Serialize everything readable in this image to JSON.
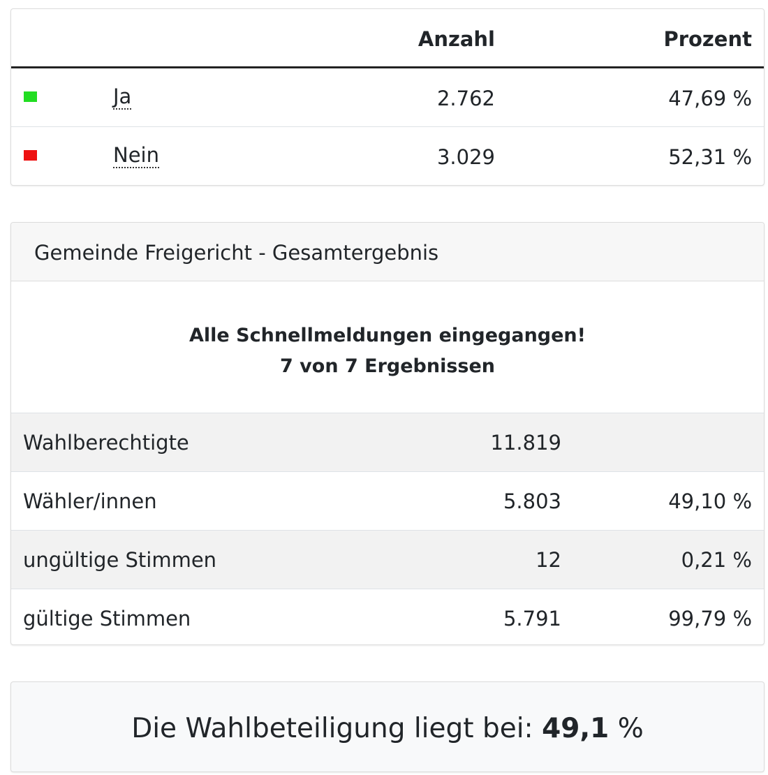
{
  "results": {
    "headers": {
      "anzahl": "Anzahl",
      "prozent": "Prozent"
    },
    "rows": [
      {
        "name": "Ja",
        "anzahl": "2.762",
        "prozent": "47,69 %",
        "color": "#22dd22"
      },
      {
        "name": "Nein",
        "anzahl": "3.029",
        "prozent": "52,31 %",
        "color": "#ee1111"
      }
    ]
  },
  "gemeinde": {
    "title": "Gemeinde Freigericht - Gesamtergebnis",
    "status_line1": "Alle Schnellmeldungen eingegangen!",
    "status_line2": "7 von 7 Ergebnissen",
    "stats": [
      {
        "label": "Wahlberechtigte",
        "value": "11.819",
        "pct": ""
      },
      {
        "label": "Wähler/innen",
        "value": "5.803",
        "pct": "49,10 %"
      },
      {
        "label": "ungültige Stimmen",
        "value": "12",
        "pct": "0,21 %"
      },
      {
        "label": "gültige Stimmen",
        "value": "5.791",
        "pct": "99,79 %"
      }
    ]
  },
  "turnout": {
    "prefix": "Die Wahlbeteiligung liegt bei:",
    "value": "49,1",
    "unit": "%"
  }
}
